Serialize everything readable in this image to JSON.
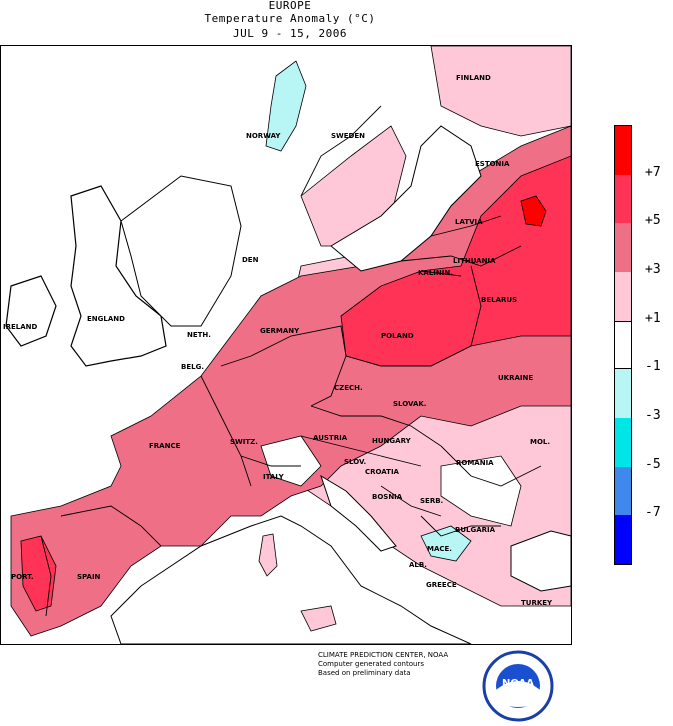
{
  "header": {
    "region": "EUROPE",
    "quantity": "Temperature Anomaly (°C)",
    "period": "JUL 9 - 15, 2006"
  },
  "legend": {
    "ticks": [
      "+7",
      "+5",
      "+3",
      "+1",
      "-1",
      "-3",
      "-5",
      "-7"
    ],
    "colors": [
      "#ff0000",
      "#ff3355",
      "#ee6f86",
      "#ffc8d8",
      "#ffffff",
      "#b8f6f6",
      "#00e6e6",
      "#3f88ee",
      "#0000ff"
    ]
  },
  "map_labels": {
    "finland": "FINLAND",
    "norway": "NORWAY",
    "sweden": "SWEDEN",
    "estonia": "ESTONIA",
    "latvia": "LATVIA",
    "lithuania": "LITHUANIA",
    "kalinin": "KALININ.",
    "belarus": "BELARUS",
    "den": "DEN",
    "ireland": "IRELAND",
    "england": "ENGLAND",
    "neth": "NETH.",
    "germany": "GERMANY",
    "poland": "POLAND",
    "belg": "BELG.",
    "czech": "CZECH.",
    "slovak": "SLOVAK.",
    "ukraine": "UKRAINE",
    "mol": "MOL.",
    "france": "FRANCE",
    "switz": "SWITZ.",
    "austria": "AUSTRIA",
    "hungary": "HUNGARY",
    "romania": "ROMANIA",
    "slov": "SLOV.",
    "croatia": "CROATIA",
    "italy": "ITALY",
    "bosnia": "BOSNIA",
    "serb": "SERB.",
    "bulgaria": "BULGARIA",
    "mace": "MACE.",
    "alb": "ALB.",
    "greece": "GREECE",
    "turkey": "TURKEY",
    "port": "PORT.",
    "spain": "SPAIN"
  },
  "credits": {
    "line1": "CLIMATE PREDICTION CENTER, NOAA",
    "line2": "Computer generated contours",
    "line3": "Based on preliminary data"
  },
  "logo": {
    "text": "NOAA"
  }
}
